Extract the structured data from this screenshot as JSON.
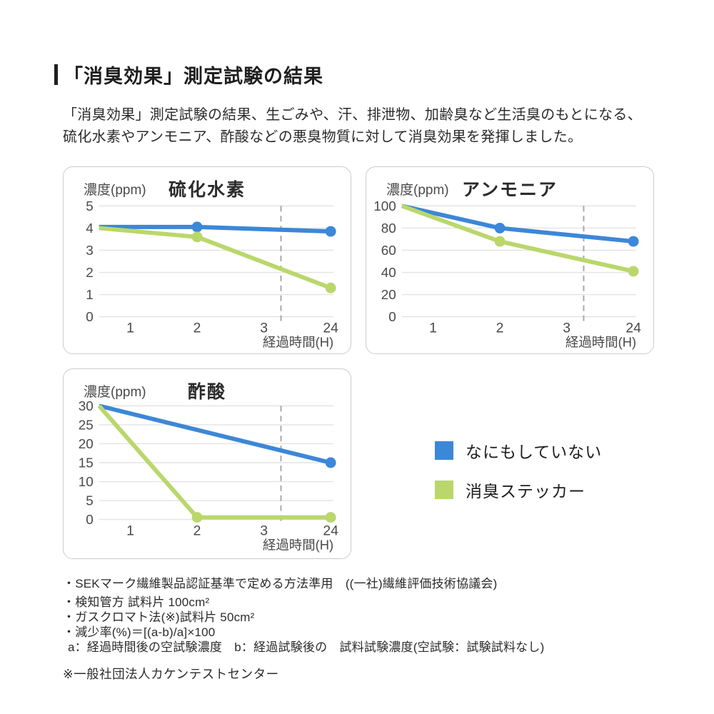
{
  "header": {
    "title": "「消臭効果」測定試験の結果"
  },
  "intro": {
    "line1": "「消臭効果」測定試験の結果、生ごみや、汗、排泄物、加齢臭など生活臭のもとになる、",
    "line2": "硫化水素やアンモニア、酢酸などの悪臭物質に対して消臭効果を発揮しました。"
  },
  "colors": {
    "blue": "#3c87d8",
    "green": "#bad76c",
    "grid": "#e3e3e3",
    "dashed": "#a8a8a8",
    "card_border": "#cccccc"
  },
  "legend": {
    "items": [
      {
        "label": "なにもしていない",
        "color": "#3c87d8"
      },
      {
        "label": "消臭ステッカー",
        "color": "#bad76c"
      }
    ]
  },
  "chart_data": [
    {
      "type": "line",
      "title": "硫化水素",
      "ylabel": "濃度(ppm)",
      "xlabel": "経過時間(H)",
      "x_ticks": [
        "1",
        "2",
        "3",
        "24"
      ],
      "y_ticks": [
        5,
        4,
        3,
        2,
        1,
        0
      ],
      "ylim": [
        0,
        5
      ],
      "grid": "horizontal",
      "axis_break_between": [
        "3",
        "24"
      ],
      "series": [
        {
          "name": "なにもしていない",
          "color": "blue",
          "points": [
            {
              "x": "edge",
              "y": 4.05
            },
            {
              "x": "2",
              "y": 4.05,
              "dot": true
            },
            {
              "x": "24",
              "y": 3.85,
              "dot": true
            }
          ]
        },
        {
          "name": "消臭ステッカー",
          "color": "green",
          "points": [
            {
              "x": "edge",
              "y": 4.0
            },
            {
              "x": "2",
              "y": 3.6,
              "dot": true
            },
            {
              "x": "24",
              "y": 1.3,
              "dot": true
            }
          ]
        }
      ]
    },
    {
      "type": "line",
      "title": "アンモニア",
      "ylabel": "濃度(ppm)",
      "xlabel": "経過時間(H)",
      "x_ticks": [
        "1",
        "2",
        "3",
        "24"
      ],
      "y_ticks": [
        100,
        80,
        60,
        40,
        20,
        0
      ],
      "ylim": [
        0,
        100
      ],
      "grid": "horizontal",
      "axis_break_between": [
        "3",
        "24"
      ],
      "series": [
        {
          "name": "なにもしていない",
          "color": "blue",
          "points": [
            {
              "x": "edge",
              "y": 100
            },
            {
              "x": "2",
              "y": 80,
              "dot": true
            },
            {
              "x": "24",
              "y": 68,
              "dot": true
            }
          ]
        },
        {
          "name": "消臭ステッカー",
          "color": "green",
          "points": [
            {
              "x": "edge",
              "y": 100
            },
            {
              "x": "2",
              "y": 68,
              "dot": true
            },
            {
              "x": "24",
              "y": 41,
              "dot": true
            }
          ]
        }
      ]
    },
    {
      "type": "line",
      "title": "酢酸",
      "ylabel": "濃度(ppm)",
      "xlabel": "経過時間(H)",
      "x_ticks": [
        "1",
        "2",
        "3",
        "24"
      ],
      "y_ticks": [
        30,
        25,
        20,
        15,
        10,
        5,
        0
      ],
      "ylim": [
        0,
        30
      ],
      "grid": "horizontal",
      "axis_break_between": [
        "3",
        "24"
      ],
      "series": [
        {
          "name": "なにもしていない",
          "color": "blue",
          "points": [
            {
              "x": "edge",
              "y": 30
            },
            {
              "x": "24",
              "y": 15,
              "dot": true
            }
          ]
        },
        {
          "name": "消臭ステッカー",
          "color": "green",
          "points": [
            {
              "x": "edge",
              "y": 30
            },
            {
              "x": "2",
              "y": 0,
              "dot": true
            },
            {
              "x": "24",
              "y": 0,
              "dot": true
            }
          ]
        }
      ]
    }
  ],
  "notes": {
    "items": [
      "・SEKマーク繊維製品認証基準で定める方法準用　((一社)繊維評価技術協議会)",
      "・検知管方 試料片 100cm²",
      "・ガスクロマト法(※)試料片 50cm²",
      "・減少率(%)＝[(a-b)/a]×100",
      "a：経過時間後の空試験濃度　b：経過試験後の　試料試験濃度(空試験：試験試料なし)"
    ],
    "footnote": "※一般社団法人カケンテストセンター"
  }
}
